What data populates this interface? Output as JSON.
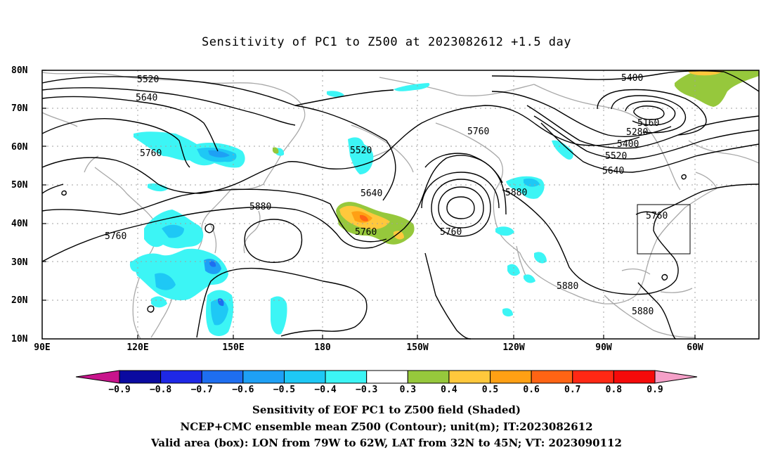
{
  "title": "Sensitivity of PC1 to Z500 at 2023082612 +1.5 day",
  "map": {
    "lat_labels": [
      "80N",
      "70N",
      "60N",
      "50N",
      "40N",
      "30N",
      "20N",
      "10N"
    ],
    "lon_labels": [
      "90E",
      "120E",
      "150E",
      "180",
      "150W",
      "120W",
      "90W",
      "60W"
    ],
    "contour_labels": [
      "5520",
      "5640",
      "5760",
      "5880",
      "5760",
      "5520",
      "5640",
      "5760",
      "5760",
      "5760",
      "5880",
      "5400",
      "5160",
      "5280",
      "5400",
      "5520",
      "5640",
      "5760",
      "5880",
      "5880"
    ],
    "valid_box": {
      "lon_from": "79W",
      "lon_to": "62W",
      "lat_from": "32N",
      "lat_to": "45N"
    }
  },
  "colorbar": {
    "labels": [
      "−0.9",
      "−0.8",
      "−0.7",
      "−0.6",
      "−0.5",
      "−0.4",
      "−0.3",
      "0.3",
      "0.4",
      "0.5",
      "0.6",
      "0.7",
      "0.8",
      "0.9"
    ],
    "colors": [
      "#0a0aa0",
      "#1e28e6",
      "#1e6ef0",
      "#1ea0f5",
      "#1ec8f5",
      "#3cf5f5",
      "#ffffff",
      "#96c83c",
      "#ffc83c",
      "#ffa014",
      "#ff6414",
      "#ff2814",
      "#f50a0a"
    ],
    "low_arrow": "#c8148c",
    "high_arrow": "#f5a0c8"
  },
  "captions": [
    "Sensitivity of EOF PC1 to Z500 field (Shaded)",
    "NCEP+CMC ensemble mean Z500 (Contour); unit(m); IT:2023082612",
    "Valid area (box): LON from 79W to 62W, LAT from 32N to 45N; VT: 2023090112"
  ]
}
